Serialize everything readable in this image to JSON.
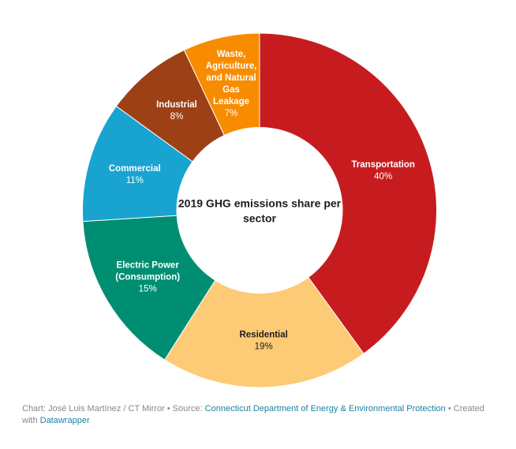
{
  "chart_data": {
    "type": "pie",
    "variant": "donut",
    "title": "2019 GHG emissions share per sector",
    "start": "top",
    "direction": "clockwise",
    "slices": [
      {
        "label": "Transportation",
        "label_lines": [
          "Transportation"
        ],
        "value": 40,
        "value_label": "40%",
        "color": "#c71c1f",
        "text_color": "#ffffff"
      },
      {
        "label": "Residential",
        "label_lines": [
          "Residential"
        ],
        "value": 19,
        "value_label": "19%",
        "color": "#fdca76",
        "text_color": "#1d1d1d"
      },
      {
        "label": "Electric Power (Consumption)",
        "label_lines": [
          "Electric Power",
          "(Consumption)"
        ],
        "value": 15,
        "value_label": "15%",
        "color": "#008e72",
        "text_color": "#ffffff"
      },
      {
        "label": "Commercial",
        "label_lines": [
          "Commercial"
        ],
        "value": 11,
        "value_label": "11%",
        "color": "#19a3d1",
        "text_color": "#ffffff"
      },
      {
        "label": "Industrial",
        "label_lines": [
          "Industrial"
        ],
        "value": 8,
        "value_label": "8%",
        "color": "#9d4015",
        "text_color": "#ffffff"
      },
      {
        "label": "Waste, Agriculture, and Natural Gas Leakage",
        "label_lines": [
          "Waste,",
          "Agriculture,",
          "and Natural",
          "Gas",
          "Leakage"
        ],
        "value": 7,
        "value_label": "7%",
        "color": "#f88c00",
        "text_color": "#ffffff"
      }
    ],
    "units": "percent"
  },
  "footer": {
    "chart_prefix": "Chart: José Luis Martínez / CT Mirror • Source: ",
    "source_link": "Connecticut Department of Energy & Environmental Protection",
    "created_text": " • Created with ",
    "tool_link": "Datawrapper"
  }
}
